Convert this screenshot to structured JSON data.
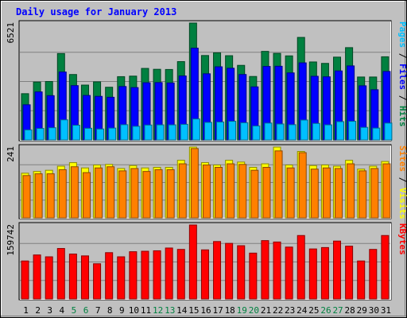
{
  "chart_data": {
    "type": "bar",
    "title": "Daily usage for January 2013",
    "categories": [
      "1",
      "2",
      "3",
      "4",
      "5",
      "6",
      "7",
      "8",
      "9",
      "10",
      "11",
      "12",
      "13",
      "14",
      "15",
      "16",
      "17",
      "18",
      "19",
      "20",
      "21",
      "22",
      "23",
      "24",
      "25",
      "26",
      "27",
      "28",
      "29",
      "30",
      "31"
    ],
    "weekend_days": [
      "5",
      "6",
      "12",
      "13",
      "19",
      "20",
      "26",
      "27"
    ],
    "panels": [
      {
        "id": "hits",
        "ymax": 6521,
        "ymax_label": "6521",
        "right_label": [
          {
            "text": "Pages",
            "color": "#00c0ff"
          },
          {
            "text": " / ",
            "color": "#000000"
          },
          {
            "text": "Files",
            "color": "#0000ff"
          },
          {
            "text": " / ",
            "color": "#000000"
          },
          {
            "text": "Hits",
            "color": "#008040"
          }
        ],
        "series": [
          {
            "name": "Hits",
            "color": "#008040",
            "values": [
              2580,
              3230,
              3260,
              4820,
              3650,
              3060,
              3240,
              2940,
              3530,
              3560,
              3990,
              3940,
              3930,
              4370,
              6521,
              4710,
              4860,
              4700,
              4160,
              3540,
              4940,
              4830,
              4690,
              5720,
              4350,
              4270,
              4620,
              5150,
              3510,
              3510,
              4640
            ]
          },
          {
            "name": "Files",
            "color": "#0000ff",
            "values": [
              1960,
              2680,
              2470,
              3790,
              3030,
              2480,
              2430,
              2380,
              2980,
              2920,
              3190,
              3200,
              3180,
              3570,
              5120,
              3690,
              4080,
              4000,
              3650,
              2960,
              4100,
              4110,
              3740,
              4300,
              3550,
              3520,
              3850,
              4130,
              3020,
              2800,
              3820
            ]
          },
          {
            "name": "Pages",
            "color": "#00c0ff",
            "values": [
              560,
              640,
              680,
              1120,
              820,
              650,
              610,
              660,
              850,
              760,
              830,
              840,
              840,
              870,
              1170,
              980,
              1000,
              1040,
              960,
              780,
              940,
              890,
              850,
              1110,
              920,
              840,
              1020,
              1040,
              700,
              660,
              940
            ]
          }
        ]
      },
      {
        "id": "visits",
        "ymax": 241,
        "ymax_label": "241",
        "right_label": [
          {
            "text": "Sites",
            "color": "#ff8000"
          },
          {
            "text": " / ",
            "color": "#000000"
          },
          {
            "text": "Visits",
            "color": "#ffff00"
          }
        ],
        "series": [
          {
            "name": "Visits",
            "color": "#ffff00",
            "values": [
              152,
              158,
              162,
              176,
              188,
              170,
              180,
              182,
              168,
              178,
              170,
              172,
              172,
              196,
              241,
              188,
              180,
              196,
              190,
              172,
              184,
              241,
              180,
              226,
              178,
              180,
              176,
              196,
              166,
              176,
              192
            ]
          },
          {
            "name": "Sites",
            "color": "#ff8000",
            "values": [
              144,
              150,
              150,
              164,
              174,
              154,
              170,
              174,
              160,
              168,
              158,
              164,
              164,
              184,
              236,
              180,
              172,
              184,
              182,
              162,
              172,
              228,
              170,
              222,
              166,
              170,
              168,
              184,
              160,
              168,
              184
            ]
          }
        ]
      },
      {
        "id": "kbytes",
        "ymax": 159742,
        "ymax_label": "159742",
        "right_label": [
          {
            "text": "KBytes",
            "color": "#ff0000"
          }
        ],
        "series": [
          {
            "name": "KBytes",
            "color": "#ff0000",
            "values": [
              82000,
              95000,
              91000,
              109000,
              97000,
              93000,
              76000,
              100000,
              91000,
              102000,
              103000,
              104000,
              110000,
              107000,
              159742,
              106000,
              124000,
              120000,
              115000,
              99000,
              126000,
              123000,
              112000,
              137000,
              108000,
              111000,
              125000,
              114000,
              82000,
              107000,
              137000
            ]
          }
        ]
      }
    ],
    "grid": true,
    "legend_placement": "right-vertical"
  },
  "colors": {
    "background": "#c0c0c0",
    "plot_background": "#c0c0c0",
    "title": "#0000ff",
    "weekend_label": "#008040",
    "weekday_label": "#000000",
    "gridline": "#808080"
  }
}
